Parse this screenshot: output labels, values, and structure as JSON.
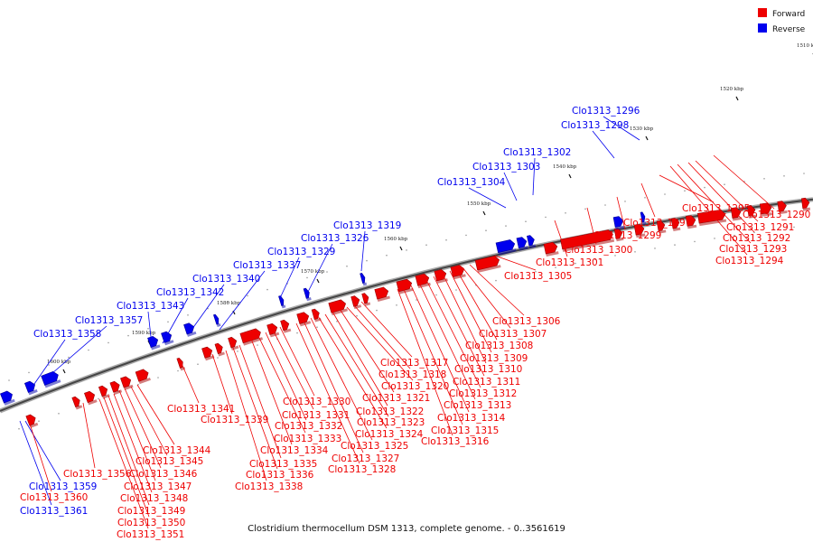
{
  "legend": {
    "forward": {
      "label": "Forward",
      "color": "#ee0000"
    },
    "reverse": {
      "label": "Reverse",
      "color": "#0000ee"
    }
  },
  "caption": "Clostridium thermocellum DSM 1313, complete genome. - 0..3561619",
  "axis": {
    "color": "#888888",
    "ticks": [
      "1510 kbp",
      "1520 kbp",
      "1530 kbp",
      "1540 kbp",
      "1550 kbp",
      "1560 kbp",
      "1570 kbp",
      "1580 kbp",
      "1590 kbp",
      "1600 kbp"
    ]
  },
  "genes": {
    "reverse": [
      "Clo1313_1296",
      "Clo1313_1298",
      "Clo1313_1302",
      "Clo1313_1303",
      "Clo1313_1304",
      "Clo1313_1319",
      "Clo1313_1326",
      "Clo1313_1329",
      "Clo1313_1337",
      "Clo1313_1340",
      "Clo1313_1342",
      "Clo1313_1343",
      "Clo1313_1357",
      "Clo1313_1358",
      "Clo1313_1359",
      "Clo1313_1361"
    ],
    "forward": [
      "Clo1313_1290",
      "Clo1313_1291",
      "Clo1313_1292",
      "Clo1313_1293",
      "Clo1313_1294",
      "Clo1313_1295",
      "Clo1313_1297",
      "Clo1313_1299",
      "Clo1313_1300",
      "Clo1313_1301",
      "Clo1313_1305",
      "Clo1313_1306",
      "Clo1313_1307",
      "Clo1313_1308",
      "Clo1313_1309",
      "Clo1313_1310",
      "Clo1313_1311",
      "Clo1313_1312",
      "Clo1313_1313",
      "Clo1313_1314",
      "Clo1313_1315",
      "Clo1313_1316",
      "Clo1313_1317",
      "Clo1313_1318",
      "Clo1313_1320",
      "Clo1313_1321",
      "Clo1313_1322",
      "Clo1313_1323",
      "Clo1313_1324",
      "Clo1313_1325",
      "Clo1313_1327",
      "Clo1313_1328",
      "Clo1313_1330",
      "Clo1313_1331",
      "Clo1313_1332",
      "Clo1313_1333",
      "Clo1313_1334",
      "Clo1313_1335",
      "Clo1313_1336",
      "Clo1313_1338",
      "Clo1313_1339",
      "Clo1313_1341",
      "Clo1313_1344",
      "Clo1313_1345",
      "Clo1313_1346",
      "Clo1313_1347",
      "Clo1313_1348",
      "Clo1313_1349",
      "Clo1313_1350",
      "Clo1313_1351",
      "Clo1313_1356",
      "Clo1313_1360"
    ]
  }
}
